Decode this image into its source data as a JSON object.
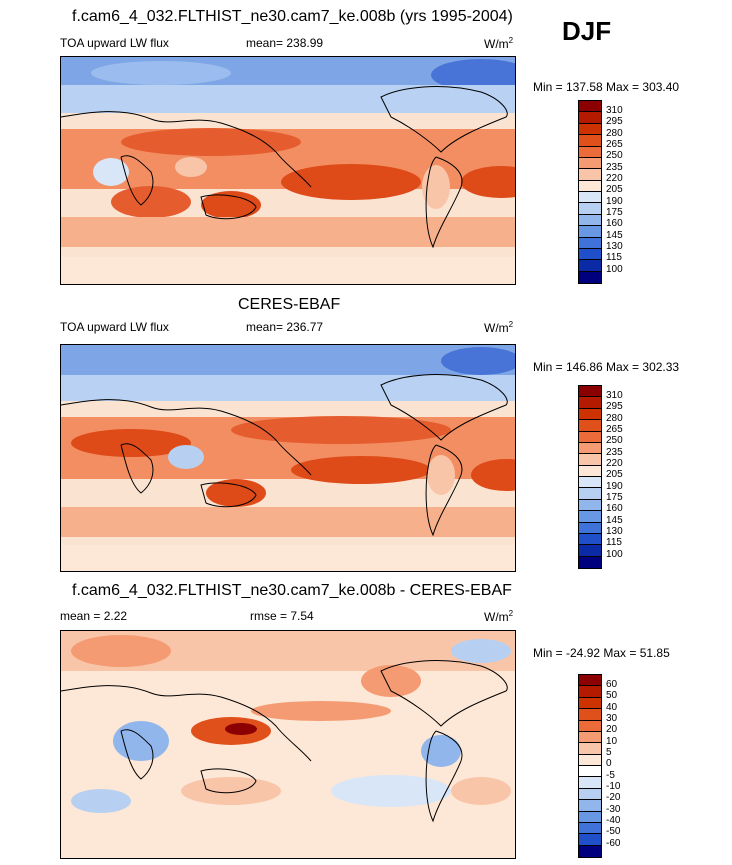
{
  "season": "DJF",
  "panels": [
    {
      "title": "f.cam6_4_032.FLTHIST_ne30.cam7_ke.008b (yrs 1995-2004)",
      "left_label": "TOA upward LW flux",
      "mid_label": "mean= 238.99",
      "units": "W/m",
      "units_sup": "2",
      "minmax": "Min = 137.58 Max = 303.40",
      "levels": [
        "310",
        "295",
        "280",
        "265",
        "250",
        "235",
        "220",
        "205",
        "190",
        "175",
        "160",
        "145",
        "130",
        "115",
        "100"
      ],
      "colors": [
        "#8b0000",
        "#b31a00",
        "#cc3300",
        "#e0501a",
        "#ec6b3a",
        "#f59b73",
        "#f9c5a8",
        "#fde7d6",
        "#d8e6f8",
        "#b7d0f2",
        "#90b6ec",
        "#6897e3",
        "#3f73d9",
        "#1f4fc9",
        "#0b2aa6",
        "#00007f"
      ]
    },
    {
      "title": "CERES-EBAF",
      "left_label": "TOA upward LW flux",
      "mid_label": "mean= 236.77",
      "units": "W/m",
      "units_sup": "2",
      "minmax": "Min = 146.86 Max = 302.33",
      "levels": [
        "310",
        "295",
        "280",
        "265",
        "250",
        "235",
        "220",
        "205",
        "190",
        "175",
        "160",
        "145",
        "130",
        "115",
        "100"
      ],
      "colors": [
        "#8b0000",
        "#b31a00",
        "#cc3300",
        "#e0501a",
        "#ec6b3a",
        "#f59b73",
        "#f9c5a8",
        "#fde7d6",
        "#d8e6f8",
        "#b7d0f2",
        "#90b6ec",
        "#6897e3",
        "#3f73d9",
        "#1f4fc9",
        "#0b2aa6",
        "#00007f"
      ]
    },
    {
      "title": "f.cam6_4_032.FLTHIST_ne30.cam7_ke.008b - CERES-EBAF",
      "left_label": "mean =   2.22",
      "mid_label": "rmse =   7.54",
      "units": "W/m",
      "units_sup": "2",
      "minmax": "Min = -24.92 Max =  51.85",
      "levels": [
        "60",
        "50",
        "40",
        "30",
        "20",
        "10",
        "5",
        "0",
        "-5",
        "-10",
        "-20",
        "-30",
        "-40",
        "-50",
        "-60"
      ],
      "colors": [
        "#8b0000",
        "#b31a00",
        "#cc3300",
        "#e0501a",
        "#ec6b3a",
        "#f59b73",
        "#f9c5a8",
        "#fde7d6",
        "#ffffff",
        "#d8e6f8",
        "#b7d0f2",
        "#90b6ec",
        "#6897e3",
        "#3f73d9",
        "#1f4fc9",
        "#00007f"
      ]
    }
  ]
}
